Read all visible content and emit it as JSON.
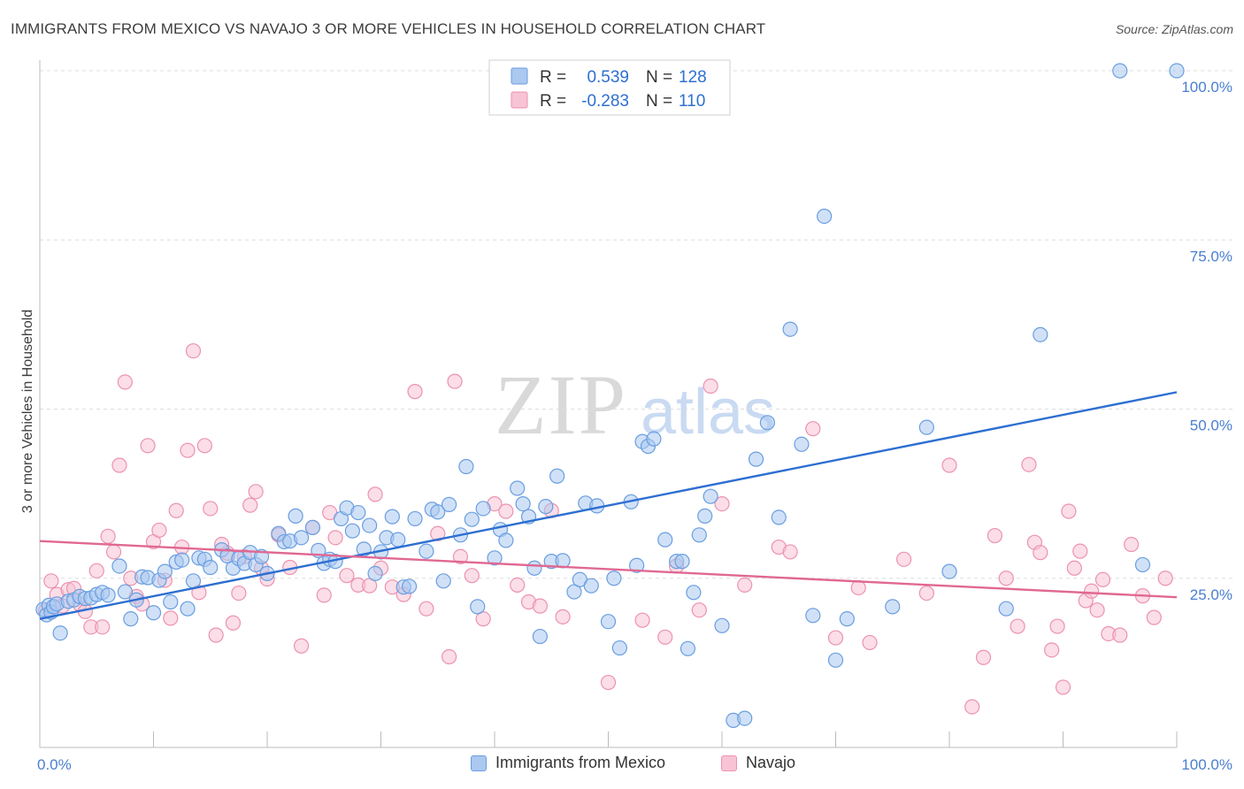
{
  "header": {
    "title": "IMMIGRANTS FROM MEXICO VS NAVAJO 3 OR MORE VEHICLES IN HOUSEHOLD CORRELATION CHART",
    "source": "Source: ZipAtlas.com"
  },
  "watermark": {
    "zip": "ZIP",
    "atlas": "atlas"
  },
  "colors": {
    "blue_fill": "#aac8f0",
    "blue_stroke": "#6a9ee0",
    "blue_line": "#2d6fd1",
    "pink_fill": "#f8c3d4",
    "pink_stroke": "#ec92b0",
    "pink_line": "#e06892",
    "tick_text": "#4a7fd0",
    "grid": "#dddddd"
  },
  "legend": {
    "rows": [
      {
        "r_label": "R =",
        "r_value": "0.539",
        "n_label": "N =",
        "n_value": "128"
      },
      {
        "r_label": "R =",
        "r_value": "-0.283",
        "n_label": "N =",
        "n_value": "110"
      }
    ]
  },
  "bottom_legend": {
    "series1": "Immigrants from Mexico",
    "series2": "Navajo"
  },
  "chart_data": {
    "type": "scatter",
    "title": "IMMIGRANTS FROM MEXICO VS NAVAJO 3 OR MORE VEHICLES IN HOUSEHOLD CORRELATION CHART",
    "xlabel": "",
    "ylabel": "3 or more Vehicles in Household",
    "xlim": [
      0,
      100
    ],
    "ylim": [
      0,
      100
    ],
    "x_tick_labels": [
      "0.0%",
      "100.0%"
    ],
    "y_tick_labels": [
      "25.0%",
      "50.0%",
      "75.0%",
      "100.0%"
    ],
    "y_ticks": [
      25,
      50,
      75,
      100
    ],
    "grid": "horizontal dashed",
    "legend_position": "top-center",
    "series": [
      {
        "name": "Immigrants from Mexico",
        "r": 0.539,
        "n": 128,
        "trend": {
          "x": [
            0,
            100
          ],
          "y": [
            19,
            52.5
          ]
        },
        "points": [
          [
            0.3,
            20.4
          ],
          [
            0.6,
            19.6
          ],
          [
            0.8,
            21.0
          ],
          [
            1.0,
            20.0
          ],
          [
            1.2,
            20.8
          ],
          [
            1.5,
            21.2
          ],
          [
            1.8,
            16.9
          ],
          [
            2.5,
            21.6
          ],
          [
            3.0,
            21.8
          ],
          [
            3.5,
            22.3
          ],
          [
            4.0,
            22.0
          ],
          [
            4.5,
            22.1
          ],
          [
            5.0,
            22.6
          ],
          [
            5.5,
            22.9
          ],
          [
            6.0,
            22.5
          ],
          [
            7.0,
            26.8
          ],
          [
            7.5,
            23.0
          ],
          [
            8.0,
            19.0
          ],
          [
            8.5,
            21.8
          ],
          [
            9.0,
            25.2
          ],
          [
            9.5,
            25.1
          ],
          [
            10.0,
            19.9
          ],
          [
            10.5,
            24.7
          ],
          [
            11.0,
            26.0
          ],
          [
            11.5,
            21.5
          ],
          [
            12.0,
            27.4
          ],
          [
            12.5,
            27.7
          ],
          [
            13.0,
            20.5
          ],
          [
            13.5,
            24.6
          ],
          [
            14.0,
            28.0
          ],
          [
            14.5,
            27.8
          ],
          [
            15.0,
            26.6
          ],
          [
            16.0,
            29.2
          ],
          [
            16.5,
            28.3
          ],
          [
            17.0,
            26.5
          ],
          [
            17.5,
            27.9
          ],
          [
            18.0,
            27.2
          ],
          [
            18.5,
            28.8
          ],
          [
            19.0,
            27.0
          ],
          [
            19.5,
            28.2
          ],
          [
            20.0,
            25.7
          ],
          [
            21.0,
            31.6
          ],
          [
            21.5,
            30.4
          ],
          [
            22.0,
            30.5
          ],
          [
            22.5,
            34.2
          ],
          [
            23.0,
            31.0
          ],
          [
            24.0,
            32.5
          ],
          [
            24.5,
            29.1
          ],
          [
            25.0,
            27.2
          ],
          [
            25.5,
            27.8
          ],
          [
            26.0,
            27.5
          ],
          [
            26.5,
            33.8
          ],
          [
            27.0,
            35.4
          ],
          [
            27.5,
            32.0
          ],
          [
            28.0,
            34.7
          ],
          [
            28.5,
            29.3
          ],
          [
            29.0,
            32.8
          ],
          [
            29.5,
            25.7
          ],
          [
            30.0,
            28.9
          ],
          [
            30.5,
            31.0
          ],
          [
            31.0,
            34.1
          ],
          [
            31.5,
            30.7
          ],
          [
            32.0,
            23.7
          ],
          [
            32.5,
            23.8
          ],
          [
            33.0,
            33.8
          ],
          [
            34.0,
            29.0
          ],
          [
            34.5,
            35.2
          ],
          [
            35.0,
            34.8
          ],
          [
            35.5,
            24.6
          ],
          [
            36.0,
            35.9
          ],
          [
            37.0,
            31.4
          ],
          [
            37.5,
            41.5
          ],
          [
            38.0,
            33.7
          ],
          [
            38.5,
            20.8
          ],
          [
            39.0,
            35.3
          ],
          [
            40.0,
            28.0
          ],
          [
            40.5,
            32.2
          ],
          [
            41.0,
            30.6
          ],
          [
            42.0,
            38.3
          ],
          [
            42.5,
            36.0
          ],
          [
            43.0,
            34.1
          ],
          [
            43.5,
            26.5
          ],
          [
            44.0,
            16.4
          ],
          [
            44.5,
            35.6
          ],
          [
            45.0,
            27.5
          ],
          [
            45.5,
            40.1
          ],
          [
            46.0,
            27.6
          ],
          [
            47.0,
            23.0
          ],
          [
            47.5,
            24.8
          ],
          [
            48.0,
            36.1
          ],
          [
            48.5,
            23.9
          ],
          [
            49.0,
            35.7
          ],
          [
            50.0,
            18.6
          ],
          [
            50.5,
            25.0
          ],
          [
            51.0,
            14.7
          ],
          [
            52.0,
            36.3
          ],
          [
            52.5,
            26.9
          ],
          [
            53.0,
            45.2
          ],
          [
            53.5,
            44.5
          ],
          [
            54.0,
            45.6
          ],
          [
            55.0,
            30.7
          ],
          [
            56.0,
            27.5
          ],
          [
            56.5,
            27.5
          ],
          [
            57.0,
            14.6
          ],
          [
            57.5,
            22.9
          ],
          [
            58.0,
            31.4
          ],
          [
            58.5,
            34.2
          ],
          [
            59.0,
            37.1
          ],
          [
            60.0,
            18.0
          ],
          [
            61.0,
            4.0
          ],
          [
            62.0,
            4.3
          ],
          [
            63.0,
            42.6
          ],
          [
            64.0,
            48.0
          ],
          [
            65.0,
            34.0
          ],
          [
            66.0,
            61.8
          ],
          [
            67.0,
            44.8
          ],
          [
            68.0,
            19.5
          ],
          [
            69.0,
            78.5
          ],
          [
            70.0,
            12.9
          ],
          [
            71.0,
            19.0
          ],
          [
            75.0,
            20.8
          ],
          [
            78.0,
            47.3
          ],
          [
            80.0,
            26.0
          ],
          [
            85.0,
            20.5
          ],
          [
            88.0,
            61.0
          ],
          [
            95.0,
            100.0
          ],
          [
            97.0,
            27.0
          ],
          [
            100.0,
            100.0
          ]
        ]
      },
      {
        "name": "Navajo",
        "r": -0.283,
        "n": 110,
        "trend": {
          "x": [
            0,
            100
          ],
          "y": [
            30.5,
            22.2
          ]
        },
        "points": [
          [
            0.5,
            20.2
          ],
          [
            1.0,
            24.6
          ],
          [
            1.5,
            22.6
          ],
          [
            2.0,
            20.9
          ],
          [
            2.5,
            23.3
          ],
          [
            3.0,
            23.5
          ],
          [
            3.5,
            21.2
          ],
          [
            4.0,
            20.1
          ],
          [
            4.5,
            17.8
          ],
          [
            5.0,
            26.1
          ],
          [
            5.5,
            17.8
          ],
          [
            6.0,
            31.2
          ],
          [
            6.5,
            28.9
          ],
          [
            7.0,
            41.7
          ],
          [
            7.5,
            54.0
          ],
          [
            8.0,
            25.0
          ],
          [
            8.5,
            22.3
          ],
          [
            9.0,
            21.2
          ],
          [
            9.5,
            44.6
          ],
          [
            10.0,
            30.4
          ],
          [
            10.5,
            32.1
          ],
          [
            11.0,
            24.7
          ],
          [
            11.5,
            19.1
          ],
          [
            12.0,
            35.0
          ],
          [
            12.5,
            29.6
          ],
          [
            13.0,
            43.9
          ],
          [
            13.5,
            58.6
          ],
          [
            14.0,
            22.9
          ],
          [
            14.5,
            44.6
          ],
          [
            15.0,
            35.3
          ],
          [
            15.5,
            16.6
          ],
          [
            16.0,
            30.0
          ],
          [
            16.5,
            28.7
          ],
          [
            17.0,
            18.4
          ],
          [
            17.5,
            22.8
          ],
          [
            18.0,
            28.2
          ],
          [
            18.5,
            35.8
          ],
          [
            19.0,
            37.8
          ],
          [
            19.5,
            26.5
          ],
          [
            20.0,
            24.9
          ],
          [
            21.0,
            31.4
          ],
          [
            22.0,
            26.6
          ],
          [
            23.0,
            15.0
          ],
          [
            24.0,
            32.5
          ],
          [
            25.0,
            22.5
          ],
          [
            25.5,
            34.7
          ],
          [
            26.0,
            31.0
          ],
          [
            27.0,
            25.4
          ],
          [
            28.0,
            24.0
          ],
          [
            29.0,
            23.9
          ],
          [
            29.5,
            37.4
          ],
          [
            30.0,
            26.5
          ],
          [
            31.0,
            23.7
          ],
          [
            32.0,
            22.6
          ],
          [
            33.0,
            52.6
          ],
          [
            34.0,
            20.5
          ],
          [
            35.0,
            31.6
          ],
          [
            36.0,
            13.4
          ],
          [
            36.5,
            54.1
          ],
          [
            37.0,
            28.2
          ],
          [
            38.0,
            25.4
          ],
          [
            39.0,
            19.0
          ],
          [
            40.0,
            36.0
          ],
          [
            41.0,
            34.9
          ],
          [
            42.0,
            24.0
          ],
          [
            43.0,
            21.5
          ],
          [
            44.0,
            20.9
          ],
          [
            45.0,
            35.0
          ],
          [
            46.0,
            19.3
          ],
          [
            50.0,
            9.6
          ],
          [
            53.0,
            18.8
          ],
          [
            55.0,
            16.3
          ],
          [
            56.0,
            26.8
          ],
          [
            58.0,
            20.3
          ],
          [
            59.0,
            53.4
          ],
          [
            60.0,
            36.0
          ],
          [
            62.0,
            24.0
          ],
          [
            65.0,
            29.6
          ],
          [
            66.0,
            28.9
          ],
          [
            68.0,
            47.1
          ],
          [
            70.0,
            16.2
          ],
          [
            72.0,
            23.6
          ],
          [
            73.0,
            15.5
          ],
          [
            76.0,
            27.8
          ],
          [
            78.0,
            22.8
          ],
          [
            80.0,
            41.7
          ],
          [
            82.0,
            6.0
          ],
          [
            83.0,
            13.3
          ],
          [
            84.0,
            31.3
          ],
          [
            85.0,
            25.0
          ],
          [
            86.0,
            17.9
          ],
          [
            87.0,
            41.8
          ],
          [
            87.5,
            30.3
          ],
          [
            88.0,
            28.8
          ],
          [
            89.0,
            14.4
          ],
          [
            89.5,
            17.9
          ],
          [
            90.0,
            8.9
          ],
          [
            90.5,
            34.9
          ],
          [
            91.0,
            26.5
          ],
          [
            91.5,
            29.0
          ],
          [
            92.0,
            21.7
          ],
          [
            92.5,
            23.1
          ],
          [
            93.0,
            20.3
          ],
          [
            93.5,
            24.8
          ],
          [
            94.0,
            16.8
          ],
          [
            95.0,
            16.6
          ],
          [
            96.0,
            30.0
          ],
          [
            97.0,
            22.4
          ],
          [
            98.0,
            19.2
          ],
          [
            99.0,
            25.0
          ]
        ]
      }
    ]
  }
}
